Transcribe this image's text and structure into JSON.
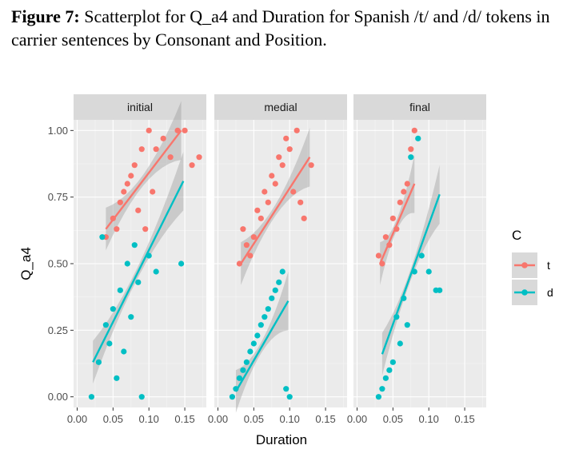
{
  "caption": {
    "figure_label": "Figure 7:",
    "text": "Scatterplot for Q_a4 and Duration for Spanish /t/ and /d/ tokens in carrier sentences by Consonant and Position."
  },
  "chart_data": {
    "type": "scatter",
    "xlabel": "Duration",
    "ylabel": "Q_a4",
    "xlim": [
      -0.005,
      0.18
    ],
    "ylim": [
      -0.04,
      1.04
    ],
    "x_ticks": [
      "0.00",
      "0.05",
      "0.10",
      "0.15"
    ],
    "x_tick_values": [
      0.0,
      0.05,
      0.1,
      0.15
    ],
    "y_ticks": [
      "0.00",
      "0.25",
      "0.50",
      "0.75",
      "1.00"
    ],
    "y_tick_values": [
      0.0,
      0.25,
      0.5,
      0.75,
      1.0
    ],
    "grid": true,
    "legend": {
      "title": "C",
      "placement": "right",
      "entries": [
        {
          "name": "t",
          "color": "#F8766D"
        },
        {
          "name": "d",
          "color": "#00BFC4"
        }
      ]
    },
    "panels": [
      {
        "label": "initial",
        "series": [
          {
            "name": "t",
            "color": "#F8766D",
            "fit": {
              "x": [
                0.04,
                0.145
              ],
              "y": [
                0.63,
                1.0
              ]
            },
            "x": [
              0.04,
              0.05,
              0.06,
              0.07,
              0.08,
              0.09,
              0.1,
              0.11,
              0.12,
              0.13,
              0.14,
              0.15,
              0.16,
              0.17,
              0.065,
              0.075,
              0.085,
              0.095,
              0.055,
              0.105
            ],
            "y": [
              0.6,
              0.67,
              0.73,
              0.8,
              0.87,
              0.93,
              1.0,
              0.93,
              0.97,
              0.9,
              1.0,
              1.0,
              0.87,
              0.9,
              0.77,
              0.83,
              0.7,
              0.63,
              0.63,
              0.77
            ]
          },
          {
            "name": "d",
            "color": "#00BFC4",
            "fit": {
              "x": [
                0.022,
                0.148
              ],
              "y": [
                0.13,
                0.81
              ]
            },
            "x": [
              0.02,
              0.03,
              0.04,
              0.05,
              0.06,
              0.07,
              0.08,
              0.09,
              0.1,
              0.11,
              0.145,
              0.035,
              0.045,
              0.055,
              0.065,
              0.075,
              0.085
            ],
            "y": [
              0.0,
              0.13,
              0.27,
              0.33,
              0.4,
              0.5,
              0.57,
              0.0,
              0.53,
              0.47,
              0.5,
              0.6,
              0.2,
              0.07,
              0.17,
              0.3,
              0.43
            ]
          }
        ]
      },
      {
        "label": "medial",
        "series": [
          {
            "name": "t",
            "color": "#F8766D",
            "fit": {
              "x": [
                0.032,
                0.128
              ],
              "y": [
                0.5,
                0.9
              ]
            },
            "x": [
              0.03,
              0.04,
              0.05,
              0.06,
              0.07,
              0.08,
              0.09,
              0.1,
              0.11,
              0.12,
              0.13,
              0.035,
              0.045,
              0.055,
              0.065,
              0.075,
              0.085,
              0.095,
              0.105,
              0.115
            ],
            "y": [
              0.5,
              0.57,
              0.6,
              0.67,
              0.73,
              0.8,
              0.87,
              0.93,
              1.0,
              0.67,
              0.87,
              0.63,
              0.53,
              0.7,
              0.77,
              0.83,
              0.9,
              0.97,
              0.77,
              0.73
            ]
          },
          {
            "name": "d",
            "color": "#00BFC4",
            "fit": {
              "x": [
                0.025,
                0.098
              ],
              "y": [
                0.02,
                0.36
              ]
            },
            "x": [
              0.02,
              0.03,
              0.04,
              0.05,
              0.06,
              0.07,
              0.08,
              0.09,
              0.1,
              0.025,
              0.035,
              0.045,
              0.055,
              0.065,
              0.075,
              0.085,
              0.095
            ],
            "y": [
              0.0,
              0.07,
              0.13,
              0.2,
              0.27,
              0.33,
              0.4,
              0.47,
              0.0,
              0.03,
              0.1,
              0.17,
              0.23,
              0.3,
              0.37,
              0.43,
              0.03
            ]
          }
        ]
      },
      {
        "label": "final",
        "series": [
          {
            "name": "t",
            "color": "#F8766D",
            "fit": {
              "x": [
                0.032,
                0.08
              ],
              "y": [
                0.5,
                0.8
              ]
            },
            "x": [
              0.03,
              0.04,
              0.05,
              0.06,
              0.07,
              0.08,
              0.035,
              0.045,
              0.055,
              0.065,
              0.075
            ],
            "y": [
              0.53,
              0.6,
              0.67,
              0.73,
              0.8,
              1.0,
              0.5,
              0.57,
              0.63,
              0.77,
              0.93
            ]
          },
          {
            "name": "d",
            "color": "#00BFC4",
            "fit": {
              "x": [
                0.035,
                0.115
              ],
              "y": [
                0.16,
                0.76
              ]
            },
            "x": [
              0.03,
              0.04,
              0.05,
              0.06,
              0.07,
              0.08,
              0.09,
              0.1,
              0.11,
              0.115,
              0.035,
              0.045,
              0.055,
              0.065,
              0.075,
              0.085
            ],
            "y": [
              0.0,
              0.07,
              0.13,
              0.2,
              0.27,
              0.47,
              0.53,
              0.47,
              0.4,
              0.4,
              0.03,
              0.1,
              0.3,
              0.37,
              0.9,
              0.97
            ]
          }
        ]
      }
    ]
  }
}
